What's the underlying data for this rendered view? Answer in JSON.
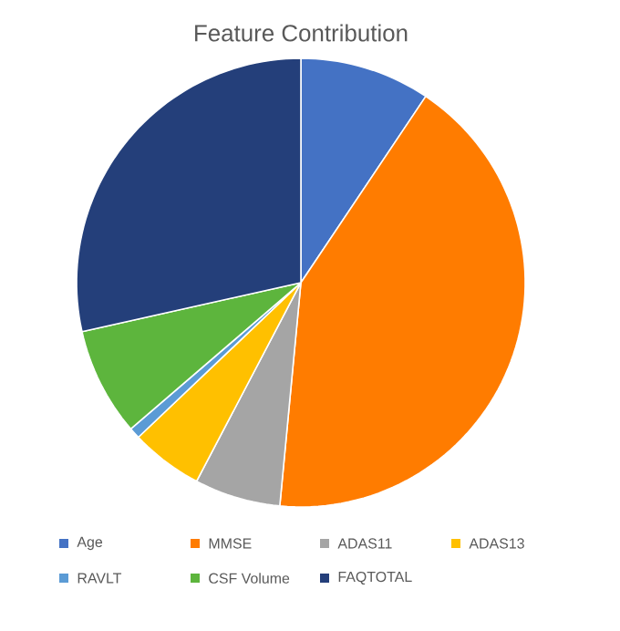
{
  "chart_data": {
    "type": "pie",
    "title": "Feature Contribution",
    "categories": [
      "Age",
      "MMSE",
      "ADAS11",
      "ADAS13",
      "RAVLT",
      "CSF Volume",
      "FAQTOTAL"
    ],
    "values": [
      9.4,
      42.1,
      6.2,
      5.2,
      0.8,
      7.8,
      28.5
    ],
    "colors": [
      "#4472c4",
      "#ff7c00",
      "#a5a5a5",
      "#ffc000",
      "#5b9bd5",
      "#5db53d",
      "#243f7a"
    ],
    "legend": "bottom"
  }
}
